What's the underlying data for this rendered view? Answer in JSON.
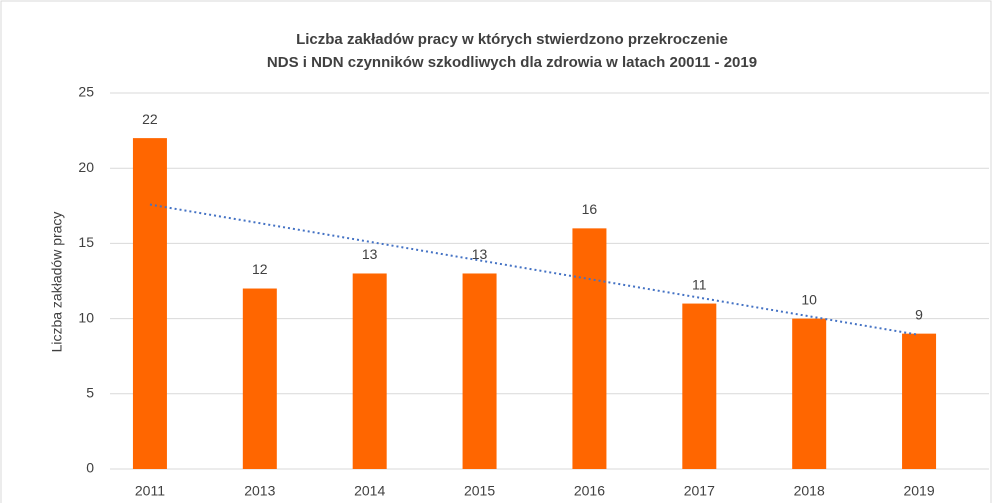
{
  "chart_data": {
    "type": "bar",
    "title": [
      "Liczba zakładów pracy w których stwierdzono przekroczenie",
      "NDS i NDN czynników szkodliwych dla zdrowia w latach 20011 - 2019"
    ],
    "y_label": "Liczba zakładów pracy",
    "categories": [
      "2011",
      "2013",
      "2014",
      "2015",
      "2016",
      "2017",
      "2018",
      "2019"
    ],
    "values": [
      22,
      12,
      13,
      13,
      16,
      11,
      10,
      9
    ],
    "color": "#ff6600",
    "trendline": true,
    "trend_color": "#4472c4",
    "ylim": [
      0,
      25
    ],
    "yticks": [
      0,
      5,
      10,
      15,
      20,
      25
    ],
    "grid": true
  }
}
